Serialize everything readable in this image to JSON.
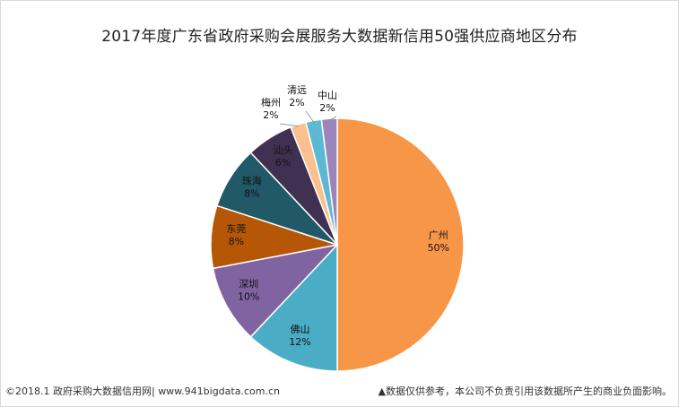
{
  "chart_data": {
    "type": "pie",
    "title": "2017年度广东省政府采购会展服务大数据新信用50强供应商地区分布",
    "slices": [
      {
        "label": "广州",
        "value": 50,
        "display": "50%",
        "color": "#f79646"
      },
      {
        "label": "佛山",
        "value": 12,
        "display": "12%",
        "color": "#4bacc6"
      },
      {
        "label": "深圳",
        "value": 10,
        "display": "10%",
        "color": "#8064a2"
      },
      {
        "label": "东莞",
        "value": 8,
        "display": "8%",
        "color": "#b65708"
      },
      {
        "label": "珠海",
        "value": 8,
        "display": "8%",
        "color": "#215968"
      },
      {
        "label": "汕头",
        "value": 6,
        "display": "6%",
        "color": "#403152"
      },
      {
        "label": "梅州",
        "value": 2,
        "display": "2%",
        "color": "#fac090"
      },
      {
        "label": "清远",
        "value": 2,
        "display": "2%",
        "color": "#5db9d3"
      },
      {
        "label": "中山",
        "value": 2,
        "display": "2%",
        "color": "#9b86bb"
      }
    ],
    "legend": "none",
    "data_labels": "inside/outside with leader lines"
  },
  "footer": {
    "left": "©2018.1 政府采购大数据信用网| www.941bigdata.com.cn",
    "right": "▲数据仅供参考，本公司不负责引用该数据所产生的商业负面影响。"
  }
}
